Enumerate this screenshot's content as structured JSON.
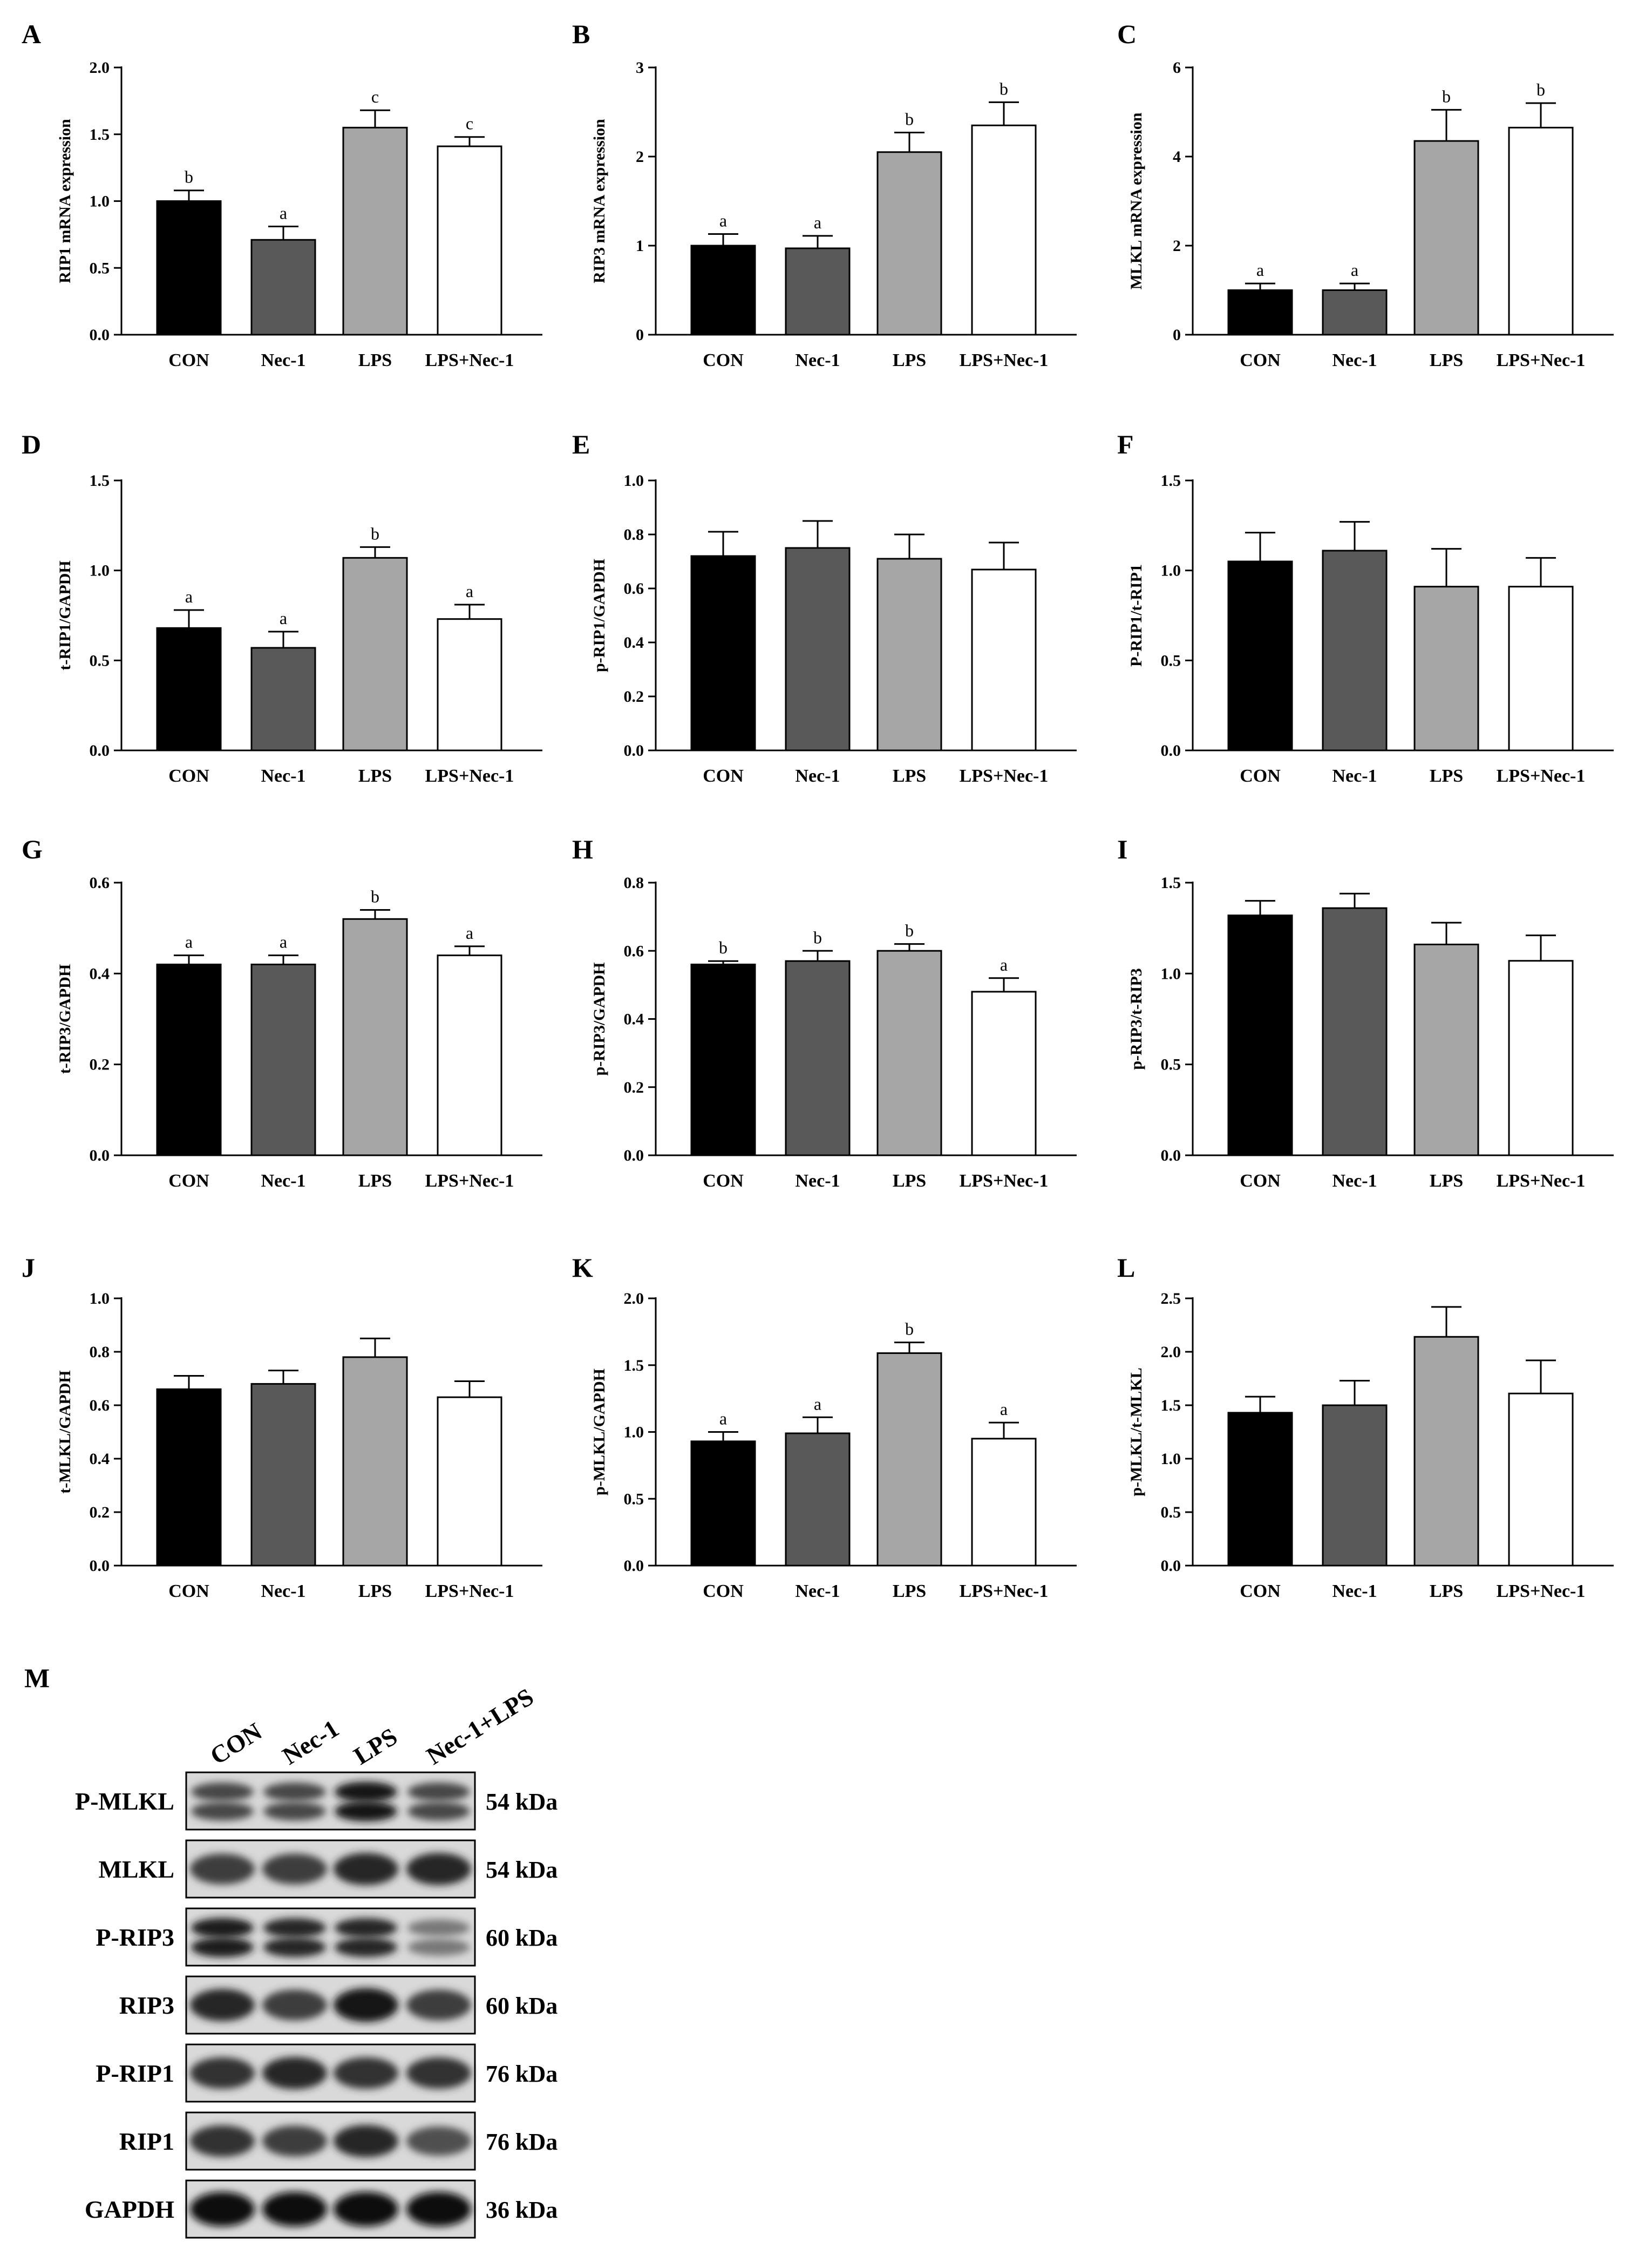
{
  "chart_data": [
    {
      "type": "bar",
      "panel": "A",
      "ylabel": "RIP1 mRNA expression",
      "categories": [
        "CON",
        "Nec-1",
        "LPS",
        "LPS+Nec-1"
      ],
      "values": [
        1.0,
        0.71,
        1.55,
        1.41
      ],
      "errors": [
        0.08,
        0.1,
        0.13,
        0.07
      ],
      "sig": [
        "b",
        "a",
        "c",
        "c"
      ],
      "ylim": [
        0,
        2.0
      ],
      "yticks": [
        0.0,
        0.5,
        1.0,
        1.5,
        2.0
      ],
      "ytick_labels": [
        "0.0",
        "0.5",
        "1.0",
        "1.5",
        "2.0"
      ]
    },
    {
      "type": "bar",
      "panel": "B",
      "ylabel": "RIP3 mRNA expression",
      "categories": [
        "CON",
        "Nec-1",
        "LPS",
        "LPS+Nec-1"
      ],
      "values": [
        1.0,
        0.97,
        2.05,
        2.35
      ],
      "errors": [
        0.13,
        0.14,
        0.22,
        0.26
      ],
      "sig": [
        "a",
        "a",
        "b",
        "b"
      ],
      "ylim": [
        0,
        3
      ],
      "yticks": [
        0,
        1,
        2,
        3
      ],
      "ytick_labels": [
        "0",
        "1",
        "2",
        "3"
      ]
    },
    {
      "type": "bar",
      "panel": "C",
      "ylabel": "MLKL mRNA expression",
      "categories": [
        "CON",
        "Nec-1",
        "LPS",
        "LPS+Nec-1"
      ],
      "values": [
        1.0,
        1.0,
        4.35,
        4.65
      ],
      "errors": [
        0.15,
        0.15,
        0.7,
        0.55
      ],
      "sig": [
        "a",
        "a",
        "b",
        "b"
      ],
      "ylim": [
        0,
        6
      ],
      "yticks": [
        0,
        2,
        4,
        6
      ],
      "ytick_labels": [
        "0",
        "2",
        "4",
        "6"
      ]
    },
    {
      "type": "bar",
      "panel": "D",
      "ylabel": "t-RIP1/GAPDH",
      "categories": [
        "CON",
        "Nec-1",
        "LPS",
        "LPS+Nec-1"
      ],
      "values": [
        0.68,
        0.57,
        1.07,
        0.73
      ],
      "errors": [
        0.1,
        0.09,
        0.06,
        0.08
      ],
      "sig": [
        "a",
        "a",
        "b",
        "a"
      ],
      "ylim": [
        0,
        1.5
      ],
      "yticks": [
        0.0,
        0.5,
        1.0,
        1.5
      ],
      "ytick_labels": [
        "0.0",
        "0.5",
        "1.0",
        "1.5"
      ]
    },
    {
      "type": "bar",
      "panel": "E",
      "ylabel": "p-RIP1/GAPDH",
      "categories": [
        "CON",
        "Nec-1",
        "LPS",
        "LPS+Nec-1"
      ],
      "values": [
        0.72,
        0.75,
        0.71,
        0.67
      ],
      "errors": [
        0.09,
        0.1,
        0.09,
        0.1
      ],
      "sig": [
        "",
        "",
        "",
        ""
      ],
      "ylim": [
        0,
        1.0
      ],
      "yticks": [
        0.0,
        0.2,
        0.4,
        0.6,
        0.8,
        1.0
      ],
      "ytick_labels": [
        "0.0",
        "0.2",
        "0.4",
        "0.6",
        "0.8",
        "1.0"
      ]
    },
    {
      "type": "bar",
      "panel": "F",
      "ylabel": "P-RIP1/t-RIP1",
      "categories": [
        "CON",
        "Nec-1",
        "LPS",
        "LPS+Nec-1"
      ],
      "values": [
        1.05,
        1.11,
        0.91,
        0.91
      ],
      "errors": [
        0.16,
        0.16,
        0.21,
        0.16
      ],
      "sig": [
        "",
        "",
        "",
        ""
      ],
      "ylim": [
        0,
        1.5
      ],
      "yticks": [
        0.0,
        0.5,
        1.0,
        1.5
      ],
      "ytick_labels": [
        "0.0",
        "0.5",
        "1.0",
        "1.5"
      ]
    },
    {
      "type": "bar",
      "panel": "G",
      "ylabel": "t-RIP3/GAPDH",
      "categories": [
        "CON",
        "Nec-1",
        "LPS",
        "LPS+Nec-1"
      ],
      "values": [
        0.42,
        0.42,
        0.52,
        0.44
      ],
      "errors": [
        0.02,
        0.02,
        0.02,
        0.02
      ],
      "sig": [
        "a",
        "a",
        "b",
        "a"
      ],
      "ylim": [
        0,
        0.6
      ],
      "yticks": [
        0.0,
        0.2,
        0.4,
        0.6
      ],
      "ytick_labels": [
        "0.0",
        "0.2",
        "0.4",
        "0.6"
      ]
    },
    {
      "type": "bar",
      "panel": "H",
      "ylabel": "p-RIP3/GAPDH",
      "categories": [
        "CON",
        "Nec-1",
        "LPS",
        "LPS+Nec-1"
      ],
      "values": [
        0.56,
        0.57,
        0.6,
        0.48
      ],
      "errors": [
        0.01,
        0.03,
        0.02,
        0.04
      ],
      "sig": [
        "b",
        "b",
        "b",
        "a"
      ],
      "ylim": [
        0,
        0.8
      ],
      "yticks": [
        0.0,
        0.2,
        0.4,
        0.6,
        0.8
      ],
      "ytick_labels": [
        "0.0",
        "0.2",
        "0.4",
        "0.6",
        "0.8"
      ]
    },
    {
      "type": "bar",
      "panel": "I",
      "ylabel": "p-RIP3/t-RIP3",
      "categories": [
        "CON",
        "Nec-1",
        "LPS",
        "LPS+Nec-1"
      ],
      "values": [
        1.32,
        1.36,
        1.16,
        1.07
      ],
      "errors": [
        0.08,
        0.08,
        0.12,
        0.14
      ],
      "sig": [
        "",
        "",
        "",
        ""
      ],
      "ylim": [
        0,
        1.5
      ],
      "yticks": [
        0.0,
        0.5,
        1.0,
        1.5
      ],
      "ytick_labels": [
        "0.0",
        "0.5",
        "1.0",
        "1.5"
      ]
    },
    {
      "type": "bar",
      "panel": "J",
      "ylabel": "t-MLKL/GAPDH",
      "categories": [
        "CON",
        "Nec-1",
        "LPS",
        "LPS+Nec-1"
      ],
      "values": [
        0.66,
        0.68,
        0.78,
        0.63
      ],
      "errors": [
        0.05,
        0.05,
        0.07,
        0.06
      ],
      "sig": [
        "",
        "",
        "",
        ""
      ],
      "ylim": [
        0,
        1.0
      ],
      "yticks": [
        0.0,
        0.2,
        0.4,
        0.6,
        0.8,
        1.0
      ],
      "ytick_labels": [
        "0.0",
        "0.2",
        "0.4",
        "0.6",
        "0.8",
        "1.0"
      ]
    },
    {
      "type": "bar",
      "panel": "K",
      "ylabel": "p-MLKL/GAPDH",
      "categories": [
        "CON",
        "Nec-1",
        "LPS",
        "LPS+Nec-1"
      ],
      "values": [
        0.93,
        0.99,
        1.59,
        0.95
      ],
      "errors": [
        0.07,
        0.12,
        0.08,
        0.12
      ],
      "sig": [
        "a",
        "a",
        "b",
        "a"
      ],
      "ylim": [
        0,
        2.0
      ],
      "yticks": [
        0.0,
        0.5,
        1.0,
        1.5,
        2.0
      ],
      "ytick_labels": [
        "0.0",
        "0.5",
        "1.0",
        "1.5",
        "2.0"
      ]
    },
    {
      "type": "bar",
      "panel": "L",
      "ylabel": "p-MLKL/t-MLKL",
      "categories": [
        "CON",
        "Nec-1",
        "LPS",
        "LPS+Nec-1"
      ],
      "values": [
        1.43,
        1.5,
        2.14,
        1.61
      ],
      "errors": [
        0.15,
        0.23,
        0.28,
        0.31
      ],
      "sig": [
        "",
        "",
        "",
        ""
      ],
      "ylim": [
        0,
        2.5
      ],
      "yticks": [
        0.0,
        0.5,
        1.0,
        1.5,
        2.0,
        2.5
      ],
      "ytick_labels": [
        "0.0",
        "0.5",
        "1.0",
        "1.5",
        "2.0",
        "2.5"
      ]
    }
  ],
  "bar_colors": [
    "#000000",
    "#595959",
    "#a6a6a6",
    "#ffffff"
  ],
  "blot": {
    "panel": "M",
    "lanes": [
      "CON",
      "Nec-1",
      "LPS",
      "Nec-1+LPS"
    ],
    "rows": [
      {
        "label": "P-MLKL",
        "kda": "54 kDa",
        "intensity": [
          0.7,
          0.7,
          0.95,
          0.7
        ],
        "double": true
      },
      {
        "label": "MLKL",
        "kda": "54 kDa",
        "intensity": [
          0.75,
          0.75,
          0.85,
          0.85
        ],
        "double": false
      },
      {
        "label": "P-RIP3",
        "kda": "60 kDa",
        "intensity": [
          0.9,
          0.85,
          0.85,
          0.45
        ],
        "double": true
      },
      {
        "label": "RIP3",
        "kda": "60 kDa",
        "intensity": [
          0.85,
          0.75,
          0.95,
          0.75
        ],
        "double": false
      },
      {
        "label": "P-RIP1",
        "kda": "76 kDa",
        "intensity": [
          0.8,
          0.85,
          0.8,
          0.8
        ],
        "double": false
      },
      {
        "label": "RIP1",
        "kda": "76 kDa",
        "intensity": [
          0.8,
          0.75,
          0.85,
          0.65
        ],
        "double": false
      },
      {
        "label": "GAPDH",
        "kda": "36 kDa",
        "intensity": [
          1.0,
          1.0,
          1.0,
          1.0
        ],
        "double": false
      }
    ]
  }
}
